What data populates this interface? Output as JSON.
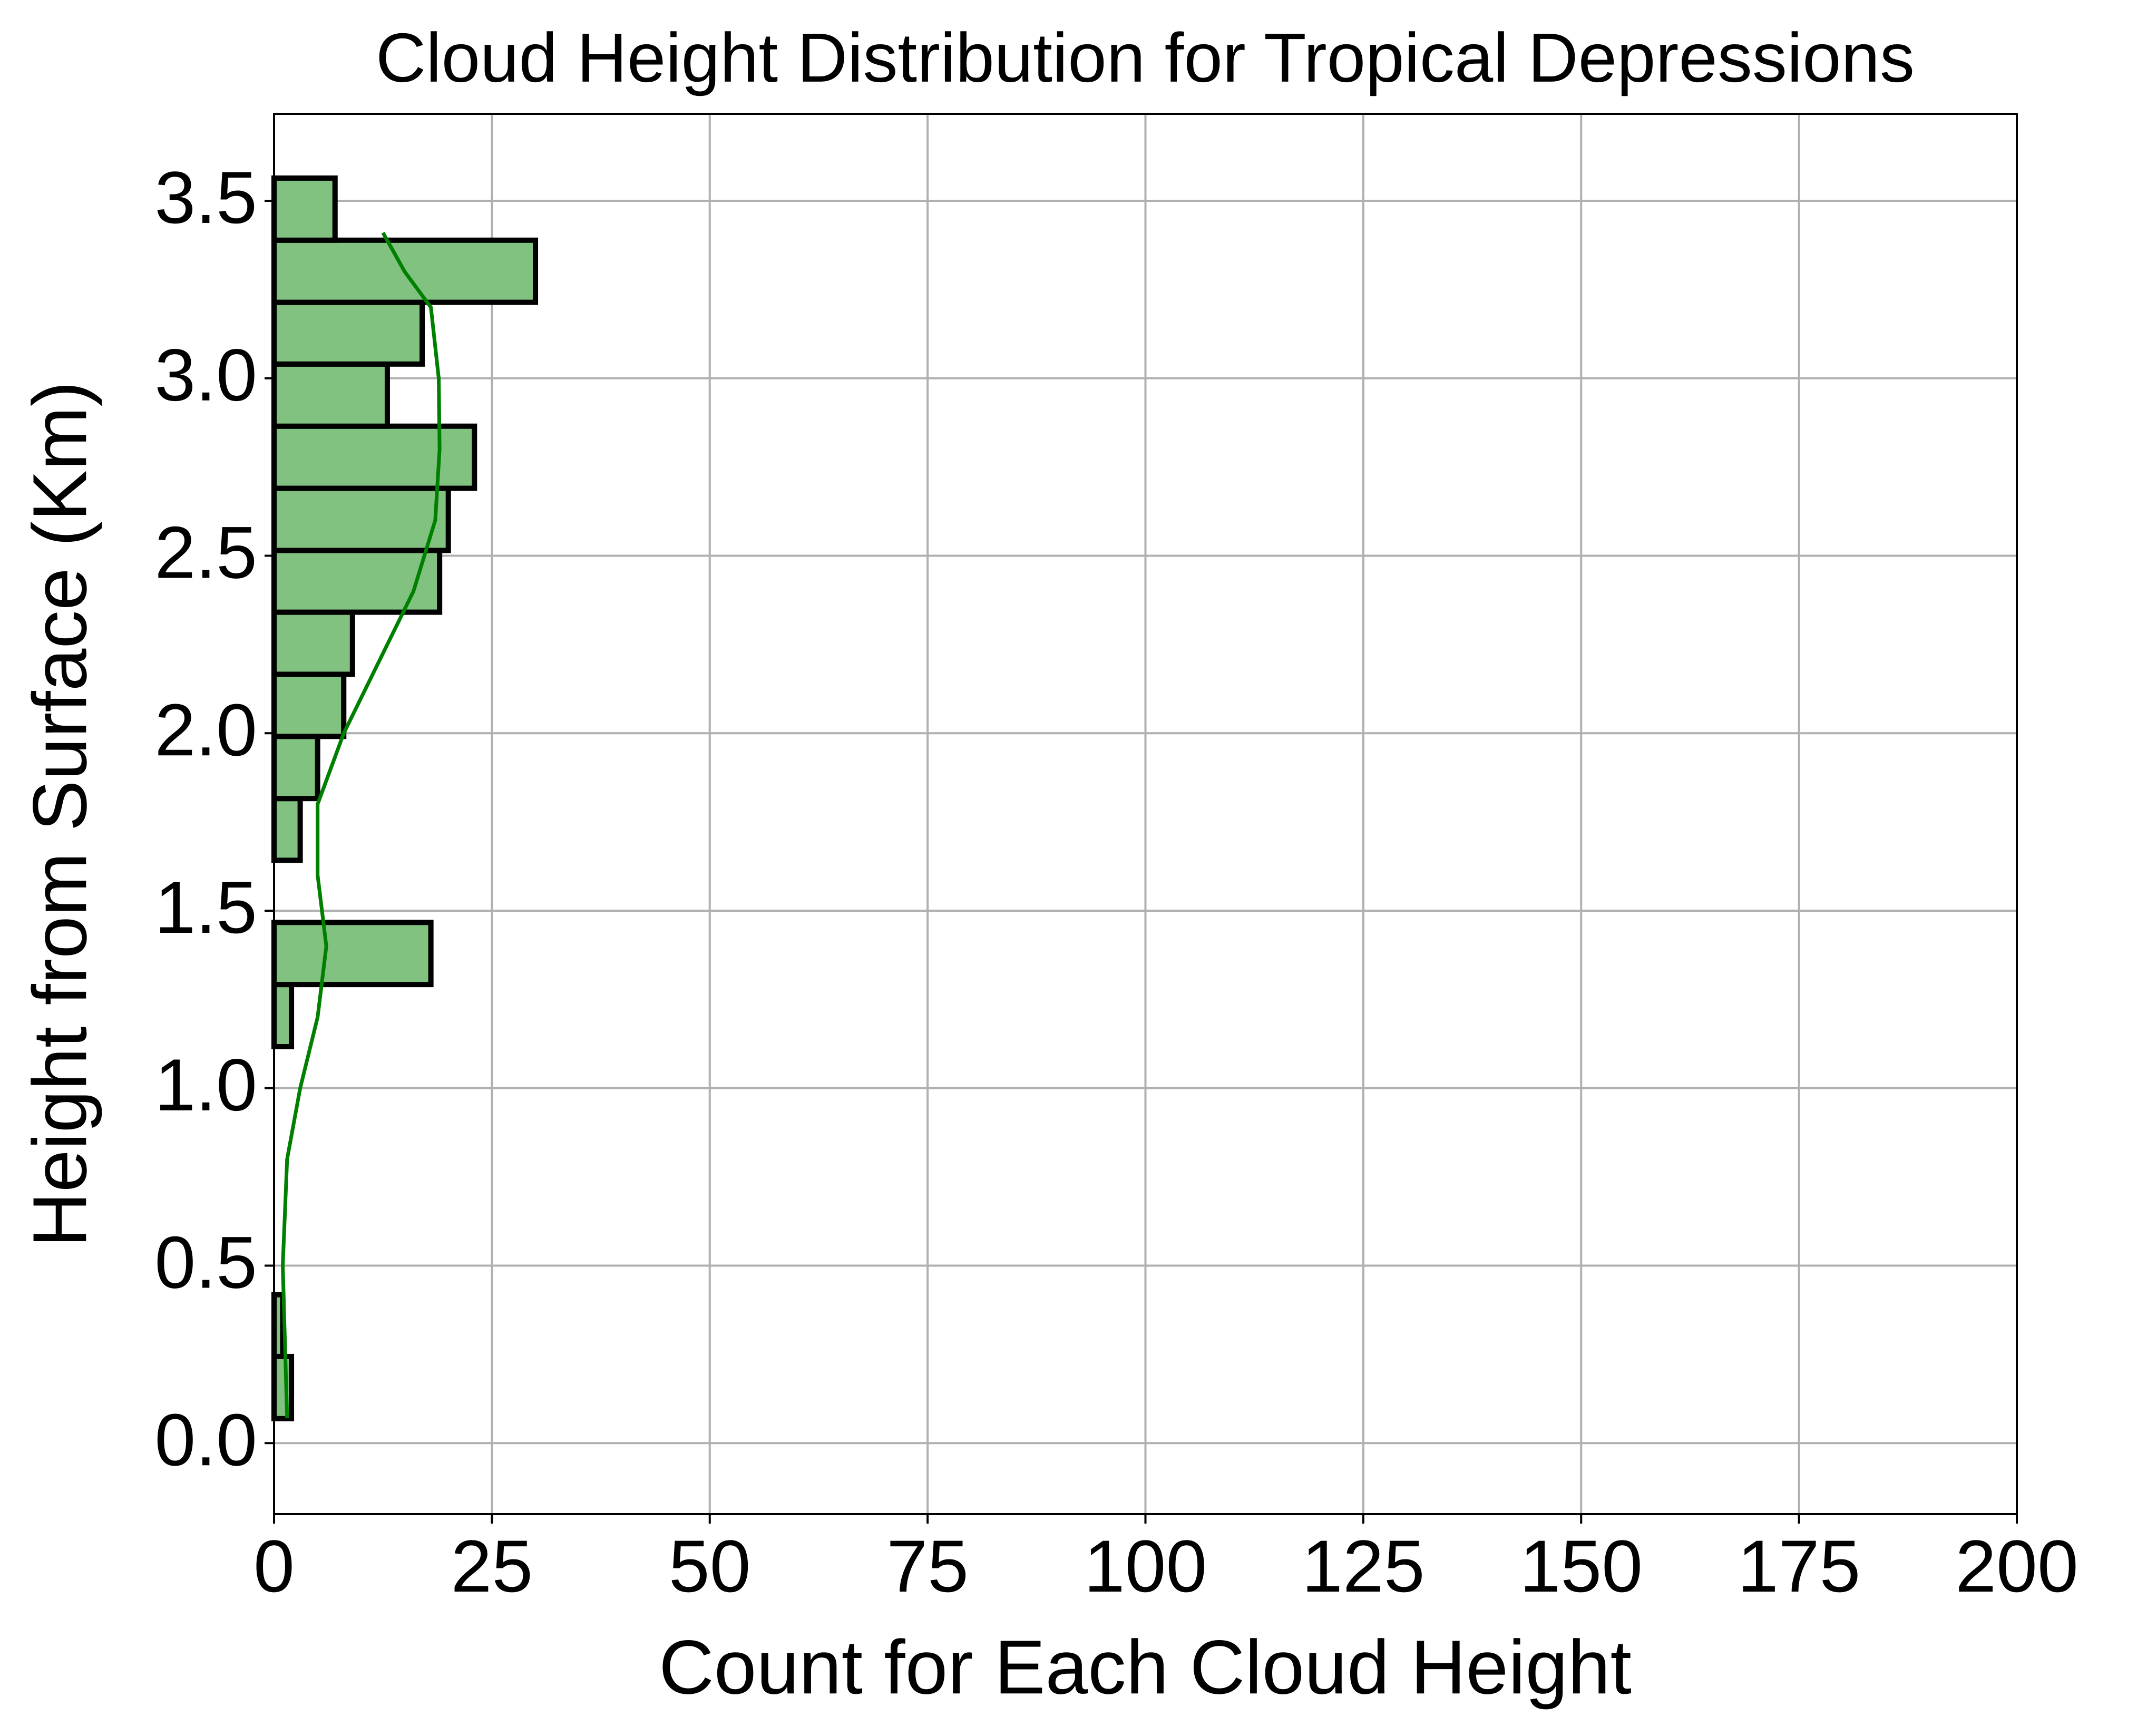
{
  "chart_data": {
    "type": "histogram",
    "orientation": "horizontal",
    "title": "Cloud Height Distribution for Tropical Depressions",
    "xlabel": "Count for Each Cloud Height",
    "ylabel": "Height from Surface (Km)",
    "bins": [
      0.069,
      0.244,
      0.418,
      0.593,
      0.768,
      0.943,
      1.117,
      1.292,
      1.467,
      1.642,
      1.816,
      1.991,
      2.166,
      2.341,
      2.515,
      2.69,
      2.865,
      3.04,
      3.214,
      3.389,
      3.564
    ],
    "values": [
      2,
      1,
      0,
      0,
      0,
      0,
      2,
      18,
      0,
      3,
      5,
      8,
      9,
      19,
      20,
      23,
      13,
      17,
      30,
      7
    ],
    "color": "#81c281",
    "edgecolor": "#000000",
    "kde": {
      "color": "#008000",
      "y": [
        0.07,
        0.5,
        0.8,
        1.0,
        1.2,
        1.4,
        1.6,
        1.8,
        2.0,
        2.2,
        2.4,
        2.6,
        2.8,
        3.0,
        3.2,
        3.3,
        3.41
      ],
      "x": [
        1.5,
        1,
        1.5,
        3,
        5,
        6,
        5,
        5,
        8,
        12,
        16,
        18.5,
        19,
        18.9,
        18,
        15,
        12.5
      ]
    },
    "xlim": [
      0,
      200
    ],
    "xticks": [
      0,
      25,
      50,
      75,
      100,
      125,
      150,
      175,
      200
    ],
    "ylim": [
      -0.2,
      3.745
    ],
    "yticks": [
      {
        "value": 0,
        "label": "0.0"
      },
      0.5,
      {
        "value": 1,
        "label": "1.0"
      },
      1.5,
      {
        "value": 2,
        "label": "2.0"
      },
      2.5,
      {
        "value": 3,
        "label": "3.0"
      },
      3.5
    ],
    "grid": true
  }
}
